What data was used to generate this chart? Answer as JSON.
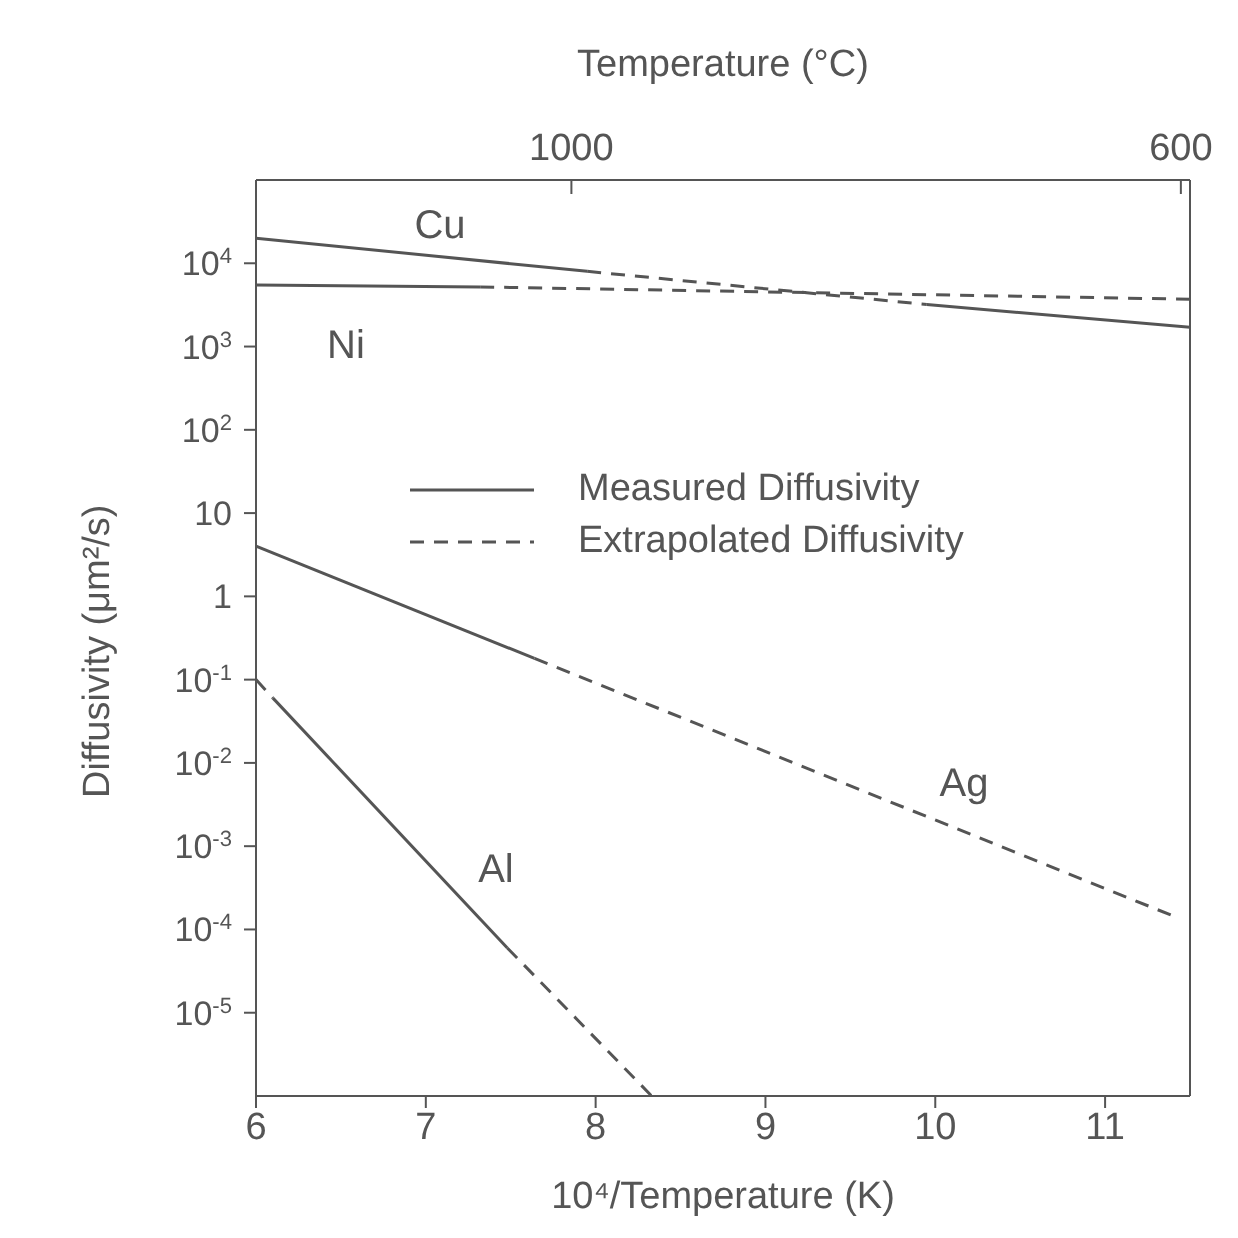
{
  "chart_data": {
    "type": "line",
    "xlabel": "10⁴/Temperature (K)",
    "ylabel": "Diffusivity (μm²/s)",
    "x2label": "Temperature (°C)",
    "xlim": [
      6,
      11.5
    ],
    "xticks": [
      6,
      7,
      8,
      9,
      10,
      11
    ],
    "x2lim": [
      1207,
      594
    ],
    "x2ticks": [
      1000,
      600
    ],
    "ylim": [
      1e-06,
      100000
    ],
    "yticks": [
      {
        "value": 1e-05,
        "label": "10$^{-5}$"
      },
      {
        "value": 0.0001,
        "label": "10$^{-4}$"
      },
      {
        "value": 0.001,
        "label": "10$^{-3}$"
      },
      {
        "value": 0.01,
        "label": "10$^{-2}$"
      },
      {
        "value": 0.1,
        "label": "10$^{-1}$"
      },
      1,
      10,
      {
        "value": 100,
        "label": "10$^{2}$"
      },
      {
        "value": 1000,
        "label": "10$^{3}$"
      },
      {
        "value": 10000,
        "label": "10$^{4}$"
      }
    ],
    "log": "y",
    "legend": "right",
    "marker": "none",
    "series": [
      {
        "name": "Measured Diffusivity",
        "color": "#555555",
        "line_style": "solid",
        "x": [
          6,
          7.95
        ],
        "values": [
          20000,
          8000
        ]
      },
      {
        "color": "#555555",
        "line_style": "solid",
        "x": [
          9.95,
          11.5
        ],
        "values": [
          3200,
          1700
        ]
      },
      {
        "color": "#555555",
        "line_style": "solid",
        "x": [
          6,
          7.32
        ],
        "values": [
          5500,
          5200
        ]
      },
      {
        "color": "#555555",
        "line_style": "solid",
        "x": [
          6,
          7.64
        ],
        "values": [
          4,
          0.18
        ]
      },
      {
        "color": "#555555",
        "line_style": "solid",
        "x": [
          6.1,
          7.48
        ],
        "values": [
          0.06,
          6e-05
        ]
      },
      {
        "name": "Extrapolated Diffusivity",
        "color": "#555555",
        "line_style": "dashed",
        "x": [
          7.95,
          9.95
        ],
        "values": [
          8000,
          3200
        ]
      },
      {
        "color": "#555555",
        "line_style": "dashed",
        "x": [
          7.32,
          11.5
        ],
        "values": [
          5200,
          3700
        ]
      },
      {
        "color": "#555555",
        "line_style": "dashed",
        "x": [
          7.64,
          11.42
        ],
        "values": [
          0.18,
          0.00014
        ]
      },
      {
        "color": "#555555",
        "line_style": "dashed",
        "x": [
          6,
          6.1
        ],
        "values": [
          0.1,
          0.06
        ]
      },
      {
        "color": "#555555",
        "line_style": "dashed",
        "x": [
          7.48,
          8.33
        ],
        "values": [
          6e-05,
          1e-06
        ]
      }
    ],
    "annotations": [
      "Cu",
      "Ni",
      "Ag",
      "Al"
    ]
  }
}
